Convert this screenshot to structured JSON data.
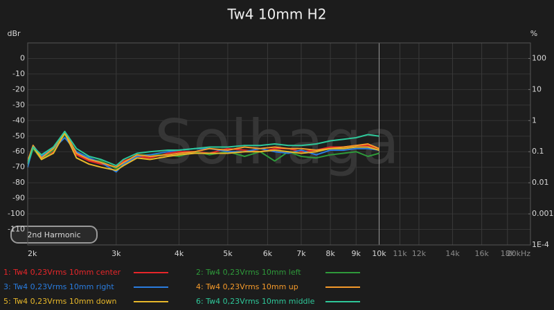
{
  "chart_data": {
    "type": "line",
    "title": "Tw4 10mm H2",
    "y_label": "dBr",
    "y2_label": "%",
    "watermark": "Solhaga",
    "button": "2nd Harmonic",
    "xscale": "log",
    "y2scale": "log",
    "grid": true,
    "xlim": [
      2000,
      20000
    ],
    "ylim": [
      -120,
      10
    ],
    "y2lim": [
      0.0001,
      316.23
    ],
    "xticks": [
      {
        "value": 2000,
        "label": "2k"
      },
      {
        "value": 3000,
        "label": "3k"
      },
      {
        "value": 4000,
        "label": "4k"
      },
      {
        "value": 5000,
        "label": "5k"
      },
      {
        "value": 6000,
        "label": "6k"
      },
      {
        "value": 7000,
        "label": "7k"
      },
      {
        "value": 8000,
        "label": "8k"
      },
      {
        "value": 9000,
        "label": "9k"
      },
      {
        "value": 10000,
        "label": "10k"
      },
      {
        "value": 11000,
        "label": "11k"
      },
      {
        "value": 12000,
        "label": "12k"
      },
      {
        "value": 14000,
        "label": "14k"
      },
      {
        "value": 16000,
        "label": "16k"
      },
      {
        "value": 18000,
        "label": "18k"
      },
      {
        "value": 20000,
        "label": "20kHz"
      }
    ],
    "yticks": [
      0,
      -10,
      -20,
      -30,
      -40,
      -50,
      -60,
      -70,
      -80,
      -90,
      -100,
      -110
    ],
    "y2ticks": [
      100,
      10,
      1,
      0.1,
      0.01,
      0.001,
      {
        "value": 0.0001,
        "label": "1E-4"
      }
    ],
    "x": [
      2000,
      2050,
      2130,
      2250,
      2370,
      2500,
      2650,
      2800,
      3000,
      3100,
      3300,
      3500,
      3800,
      4000,
      4300,
      4600,
      5000,
      5400,
      5800,
      6200,
      6600,
      7000,
      7500,
      8000,
      8500,
      9000,
      9500,
      10000
    ],
    "series": [
      {
        "name": "1: Tw4 0,23Vrms 10mm center",
        "color": "#e8262a",
        "values": [
          -68,
          -57,
          -64,
          -60,
          -48,
          -62,
          -66,
          -68,
          -70,
          -66,
          -63,
          -64,
          -61,
          -60,
          -60,
          -61,
          -58,
          -59,
          -60,
          -58,
          -58,
          -60,
          -59,
          -57,
          -57,
          -56,
          -56,
          -58
        ]
      },
      {
        "name": "2: Tw4 0,23Vrms 10mm left",
        "color": "#2e9a3a",
        "values": [
          -69,
          -58,
          -65,
          -59,
          -49,
          -60,
          -65,
          -66,
          -71,
          -67,
          -62,
          -62,
          -62,
          -63,
          -60,
          -62,
          -60,
          -63,
          -60,
          -66,
          -60,
          -63,
          -64,
          -62,
          -61,
          -60,
          -63,
          -61
        ]
      },
      {
        "name": "3: Tw4 0,23Vrms 10mm right",
        "color": "#2a7de0",
        "values": [
          -70,
          -56,
          -63,
          -58,
          -51,
          -60,
          -64,
          -67,
          -73,
          -68,
          -63,
          -62,
          -60,
          -59,
          -58,
          -58,
          -60,
          -60,
          -58,
          -60,
          -61,
          -59,
          -62,
          -59,
          -59,
          -58,
          -58,
          -59
        ]
      },
      {
        "name": "4: Tw4 0,23Vrms 10mm up",
        "color": "#f59a2a",
        "values": [
          -66,
          -56,
          -64,
          -58,
          -47,
          -61,
          -65,
          -67,
          -70,
          -67,
          -62,
          -63,
          -62,
          -61,
          -60,
          -58,
          -59,
          -57,
          -58,
          -57,
          -58,
          -58,
          -59,
          -58,
          -57,
          -56,
          -55,
          -58
        ]
      },
      {
        "name": "5: Tw4 0,23Vrms 10mm down",
        "color": "#e8b82a",
        "values": [
          -67,
          -57,
          -65,
          -61,
          -48,
          -64,
          -68,
          -70,
          -72,
          -69,
          -64,
          -65,
          -63,
          -62,
          -61,
          -61,
          -61,
          -60,
          -60,
          -59,
          -60,
          -61,
          -60,
          -58,
          -58,
          -57,
          -57,
          -59
        ]
      },
      {
        "name": "6: Tw4 0,23Vrms 10mm middle",
        "color": "#2ec89a",
        "values": [
          -68,
          -57,
          -62,
          -57,
          -47,
          -58,
          -63,
          -65,
          -69,
          -65,
          -61,
          -60,
          -59,
          -59,
          -58,
          -57,
          -57,
          -56,
          -56,
          -55,
          -56,
          -56,
          -55,
          -53,
          -52,
          -51,
          -49,
          -50
        ]
      }
    ]
  }
}
